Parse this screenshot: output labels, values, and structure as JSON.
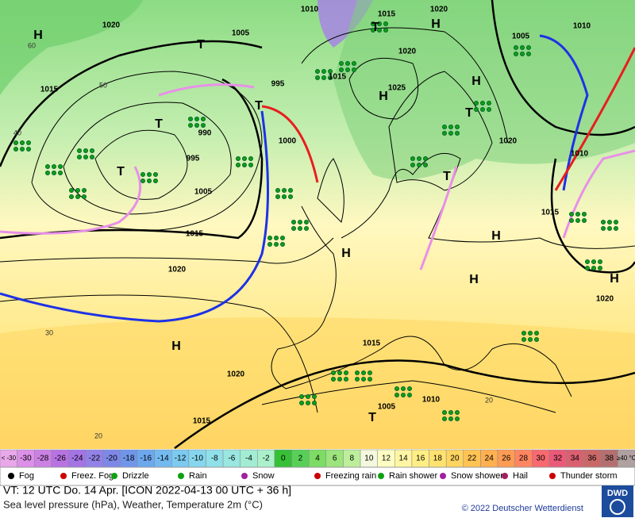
{
  "map": {
    "isobar_labels": [
      "1010",
      "1020",
      "1005",
      "1015",
      "995",
      "990",
      "1000",
      "995",
      "1005",
      "1015",
      "1020",
      "1015",
      "1020",
      "1025",
      "1020",
      "1010",
      "1015",
      "1020",
      "1015",
      "1010",
      "1005",
      "1020",
      "1015",
      "1005",
      "1010",
      "1020",
      "1015"
    ],
    "centers": [
      "H",
      "H",
      "H",
      "H",
      "H",
      "H",
      "H",
      "H",
      "H",
      "T",
      "T",
      "T",
      "T",
      "T",
      "T",
      "T",
      "T"
    ],
    "temperature_labels": [
      "60",
      "50",
      "40",
      "30",
      "20",
      "20"
    ]
  },
  "legend": {
    "scale": [
      {
        "label": "< -30",
        "color": "#e8a8ea"
      },
      {
        "label": "-30",
        "color": "#dc90e8"
      },
      {
        "label": "-28",
        "color": "#cc80e4"
      },
      {
        "label": "-26",
        "color": "#b872e2"
      },
      {
        "label": "-24",
        "color": "#a474e6"
      },
      {
        "label": "-22",
        "color": "#9282e8"
      },
      {
        "label": "-20",
        "color": "#7e88e8"
      },
      {
        "label": "-18",
        "color": "#7096ea"
      },
      {
        "label": "-16",
        "color": "#6ca8ee"
      },
      {
        "label": "-14",
        "color": "#72baf0"
      },
      {
        "label": "-12",
        "color": "#7ccaf0"
      },
      {
        "label": "-10",
        "color": "#86d6ee"
      },
      {
        "label": "-8",
        "color": "#90e0ea"
      },
      {
        "label": "-6",
        "color": "#9ae6e0"
      },
      {
        "label": "-4",
        "color": "#a2ecd4"
      },
      {
        "label": "-2",
        "color": "#aaf0ca"
      },
      {
        "label": "0",
        "color": "#36c036"
      },
      {
        "label": "2",
        "color": "#58d058"
      },
      {
        "label": "4",
        "color": "#7cdc64"
      },
      {
        "label": "6",
        "color": "#9ce47c"
      },
      {
        "label": "8",
        "color": "#bcee9c"
      },
      {
        "label": "10",
        "color": "#f4f8dc"
      },
      {
        "label": "12",
        "color": "#ffffc4"
      },
      {
        "label": "14",
        "color": "#fff6a4"
      },
      {
        "label": "16",
        "color": "#ffee84"
      },
      {
        "label": "18",
        "color": "#ffe270"
      },
      {
        "label": "20",
        "color": "#ffd460"
      },
      {
        "label": "22",
        "color": "#ffc454"
      },
      {
        "label": "24",
        "color": "#ffb050"
      },
      {
        "label": "26",
        "color": "#ff9c54"
      },
      {
        "label": "28",
        "color": "#ff8660"
      },
      {
        "label": "30",
        "color": "#f86a70"
      },
      {
        "label": "32",
        "color": "#ea5a78"
      },
      {
        "label": "34",
        "color": "#da6070"
      },
      {
        "label": "36",
        "color": "#ca6868"
      },
      {
        "label": "38",
        "color": "#b47070"
      },
      {
        "label": "≥40 °C",
        "color": "#b0a0a0"
      }
    ],
    "weather": [
      "Fog",
      "Freez. Fog",
      "Drizzle",
      "Rain",
      "Snow",
      "Freezing rain",
      "Rain shower",
      "Snow shower",
      "Hail",
      "Thunder storm"
    ]
  },
  "footer": {
    "valid_time": "VT: 12 UTC Do.  14 Apr. [ICON 2022-04-13  00 UTC + 36 h]",
    "description": "Sea level pressure (hPa), Weather, Temperature 2m (°C)",
    "copyright": "© 2022 Deutscher Wetterdienst",
    "logo": "DWD"
  }
}
